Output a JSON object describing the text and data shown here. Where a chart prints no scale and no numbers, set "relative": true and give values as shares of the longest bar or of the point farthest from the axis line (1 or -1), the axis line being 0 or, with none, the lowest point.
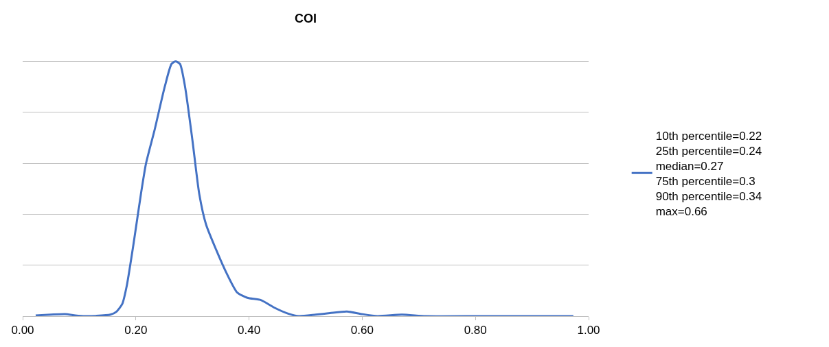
{
  "chart_data": {
    "type": "line",
    "title": "COI",
    "relative": true,
    "grid": "y",
    "legend": "right",
    "marker": "none",
    "line_style": "solid",
    "xlim": [
      0,
      1
    ],
    "xticks": [
      {
        "value": 0,
        "label": "0.00"
      },
      {
        "value": 0.2,
        "label": "0.20"
      },
      {
        "value": 0.4,
        "label": "0.40"
      },
      {
        "value": 0.6,
        "label": "0.60"
      },
      {
        "value": 0.8,
        "label": "0.80"
      },
      {
        "value": 1,
        "label": "1.00"
      }
    ],
    "series": [
      {
        "name": "10th percentile=0.22\n25th percentile=0.24\nmedian=0.27\n75th percentile=0.3\n90th percentile=0.34\nmax=0.66",
        "color": "#4472c4",
        "x": [
          0.023,
          0.05,
          0.075,
          0.093,
          0.11,
          0.13,
          0.155,
          0.166,
          0.176,
          0.184,
          0.197,
          0.209,
          0.218,
          0.233,
          0.251,
          0.263,
          0.27,
          0.278,
          0.287,
          0.3,
          0.312,
          0.324,
          0.342,
          0.36,
          0.379,
          0.397,
          0.421,
          0.445,
          0.47,
          0.488,
          0.518,
          0.543,
          0.573,
          0.597,
          0.627,
          0.67,
          0.712,
          0.81,
          0.973
        ],
        "values": [
          0.003,
          0.006,
          0.008,
          0.003,
          0,
          0.001,
          0.006,
          0.018,
          0.048,
          0.12,
          0.3,
          0.48,
          0.6,
          0.73,
          0.9,
          0.99,
          1,
          0.99,
          0.9,
          0.69,
          0.48,
          0.36,
          0.26,
          0.17,
          0.093,
          0.072,
          0.063,
          0.033,
          0.009,
          0,
          0.006,
          0.012,
          0.018,
          0.009,
          0,
          0.006,
          0,
          0,
          0
        ]
      }
    ]
  }
}
